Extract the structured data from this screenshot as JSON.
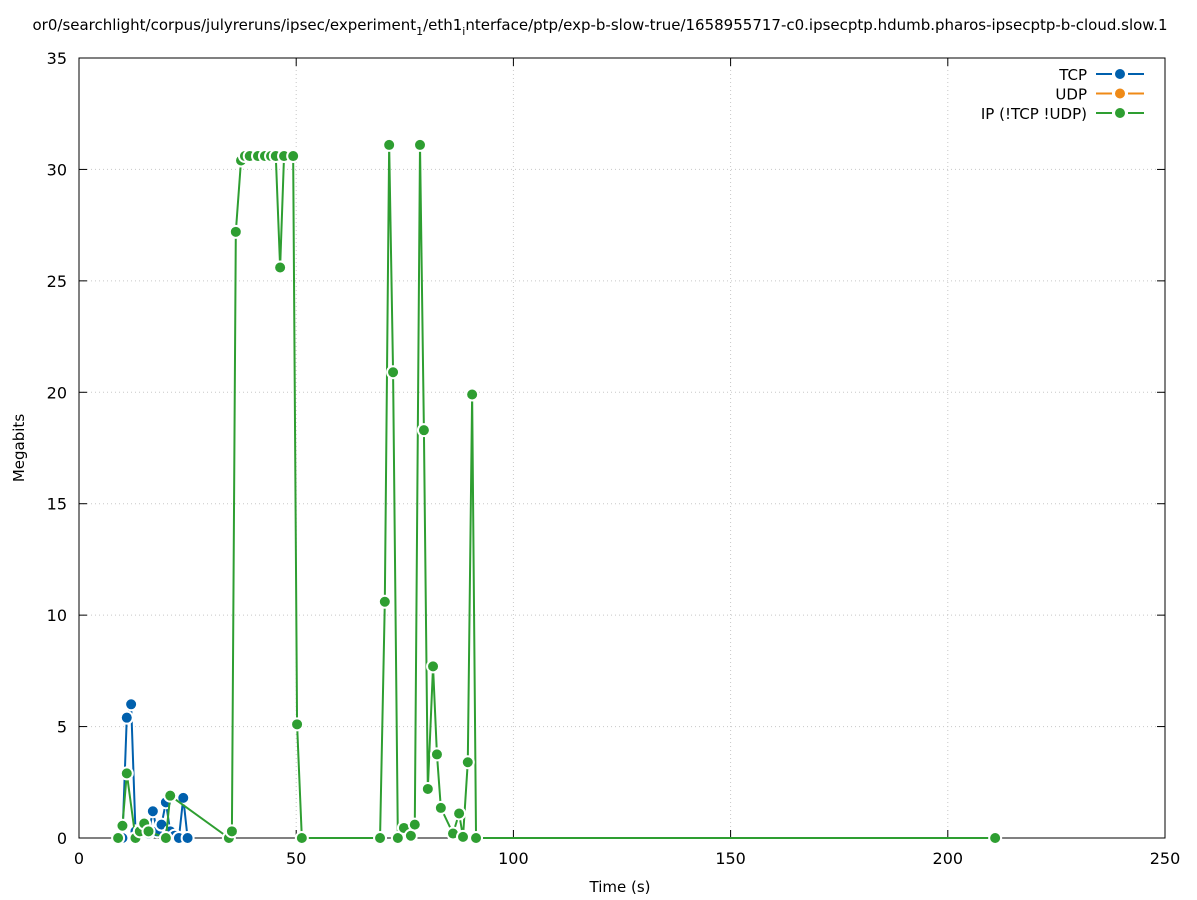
{
  "chart_data": {
    "type": "line",
    "title": [
      "or0/searchlight/corpus/julyreruns/ipsec/experiment",
      "1",
      "/eth1",
      "i",
      "nterface/ptp/exp-b-slow-true/1658955717-c0.ipsecptp.hdumb.pharos-ipsecptp-b-cloud.slow.1"
    ],
    "title_subscripts": [
      1,
      3
    ],
    "xlabel": "Time (s)",
    "ylabel": "Megabits",
    "xlim": [
      0,
      250
    ],
    "xticks": [
      0,
      50,
      100,
      150,
      200,
      250
    ],
    "ylim": [
      0,
      35
    ],
    "yticks": [
      0,
      5,
      10,
      15,
      20,
      25,
      30,
      35
    ],
    "grid": true,
    "legend": "top-right",
    "series": [
      {
        "name": "TCP",
        "color": "#0060ad",
        "x": [
          10,
          11,
          12,
          13,
          14,
          15,
          16,
          17,
          18,
          19,
          20,
          21,
          22,
          23,
          24,
          25
        ],
        "values": [
          0,
          5.4,
          6.0,
          0.3,
          0.2,
          0.5,
          0.2,
          1.2,
          0.3,
          0.6,
          1.6,
          0.3,
          0.1,
          0,
          1.8,
          0
        ]
      },
      {
        "name": "UDP",
        "color": "#ef8a17",
        "x": [],
        "values": []
      },
      {
        "name": "IP (!TCP  !UDP)",
        "color": "#2e9e31",
        "x": [
          9,
          10,
          11,
          13,
          14,
          15,
          16,
          20,
          21,
          34.5,
          35.2,
          36.1,
          37.3,
          38.2,
          39.3,
          41.2,
          42.8,
          44.2,
          45.3,
          46.3,
          47.2,
          49.3,
          50.2,
          51.3,
          69.3,
          70.4,
          71.4,
          72.3,
          73.4,
          74.8,
          76.4,
          77.3,
          78.5,
          79.4,
          80.3,
          81.5,
          82.4,
          83.3,
          86.1,
          87.5,
          88.4,
          89.5,
          90.5,
          91.4,
          210.9
        ],
        "values": [
          0,
          0.55,
          2.9,
          0,
          0.3,
          0.65,
          0.3,
          0,
          1.9,
          0,
          0.3,
          27.2,
          30.4,
          30.6,
          30.6,
          30.6,
          30.6,
          30.6,
          30.6,
          25.6,
          30.6,
          30.6,
          5.1,
          0,
          0,
          10.6,
          31.1,
          20.9,
          0,
          0.45,
          0.1,
          0.6,
          31.1,
          18.3,
          2.2,
          7.7,
          3.75,
          1.35,
          0.2,
          1.1,
          0.05,
          3.4,
          19.9,
          0,
          0
        ]
      }
    ]
  }
}
